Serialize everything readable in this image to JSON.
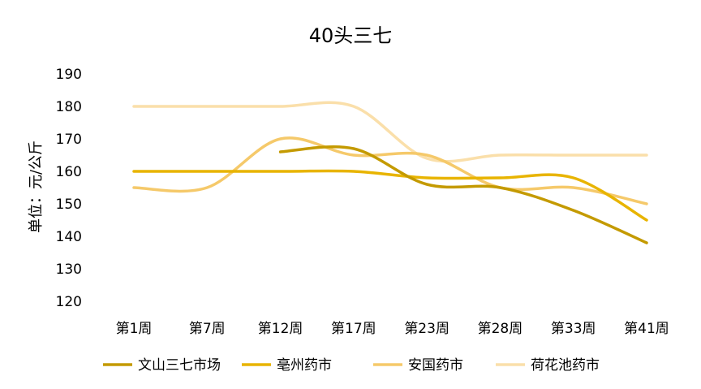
{
  "chart_data": {
    "type": "line",
    "title": "40头三七",
    "ylabel": "单位：元/公斤",
    "xlabel": "",
    "categories": [
      "第1周",
      "第7周",
      "第12周",
      "第17周",
      "第23周",
      "第28周",
      "第33周",
      "第41周"
    ],
    "ylim": [
      120,
      190
    ],
    "yticks": [
      120,
      130,
      140,
      150,
      160,
      170,
      180,
      190
    ],
    "grid": false,
    "legend_position": "bottom",
    "series": [
      {
        "name": "文山三七市场",
        "color": "#C49A00",
        "values": [
          null,
          null,
          166,
          167,
          156,
          155,
          148,
          138
        ]
      },
      {
        "name": "亳州药市",
        "color": "#E8B400",
        "values": [
          160,
          160,
          160,
          160,
          158,
          158,
          158,
          145
        ]
      },
      {
        "name": "安国药市",
        "color": "#F5C96A",
        "values": [
          155,
          155,
          170,
          165,
          165,
          155,
          155,
          150
        ]
      },
      {
        "name": "荷花池药市",
        "color": "#FADFAA",
        "values": [
          180,
          180,
          180,
          180,
          164,
          165,
          165,
          165
        ]
      }
    ]
  }
}
